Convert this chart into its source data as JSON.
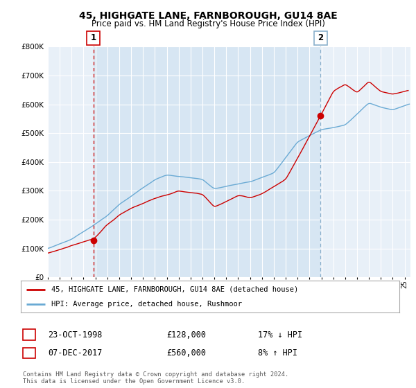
{
  "title": "45, HIGHGATE LANE, FARNBOROUGH, GU14 8AE",
  "subtitle": "Price paid vs. HM Land Registry's House Price Index (HPI)",
  "ylim": [
    0,
    800000
  ],
  "xlim_start": 1995.0,
  "xlim_end": 2025.5,
  "bg_color": "#ffffff",
  "plot_bg_color": "#e8f0f8",
  "grid_color": "#ffffff",
  "hpi_color": "#6aaad4",
  "price_color": "#cc0000",
  "fill_color": "#c8ddf0",
  "vline1_color": "#cc0000",
  "vline1_style": "--",
  "vline2_color": "#8ab0cc",
  "vline2_style": "--",
  "t1_year": 1998.83,
  "t1_price": 128000,
  "t2_year": 2017.92,
  "t2_price": 560000,
  "legend_label_red": "45, HIGHGATE LANE, FARNBOROUGH, GU14 8AE (detached house)",
  "legend_label_blue": "HPI: Average price, detached house, Rushmoor",
  "footer": "Contains HM Land Registry data © Crown copyright and database right 2024.\nThis data is licensed under the Open Government Licence v3.0.",
  "row1": [
    "1",
    "23-OCT-1998",
    "£128,000",
    "17% ↓ HPI"
  ],
  "row2": [
    "2",
    "07-DEC-2017",
    "£560,000",
    "8% ↑ HPI"
  ]
}
